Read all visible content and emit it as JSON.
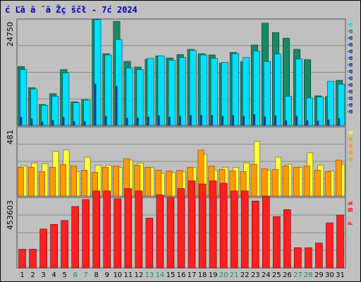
{
  "header": {
    "title": "ć Ľă  ă ¨ă Žç ščł  - 7ć   2024"
  },
  "chart_data": {
    "type": "bar",
    "categories": [
      "1",
      "2",
      "3",
      "4",
      "5",
      "6",
      "7",
      "8",
      "9",
      "10",
      "11",
      "12",
      "13",
      "14",
      "15",
      "16",
      "17",
      "18",
      "19",
      "20",
      "21",
      "22",
      "23",
      "24",
      "25",
      "26",
      "27",
      "28",
      "29",
      "30",
      "31"
    ],
    "weekend_days": [
      "6",
      "7",
      "13",
      "14",
      "20",
      "21",
      "27",
      "28"
    ],
    "panels": [
      {
        "id": "top",
        "ymax_label": "24750",
        "ymax": 24750,
        "legend": [
          "ă",
          "ă",
          "ă",
          "ă",
          "ă",
          "ă",
          "ă",
          "ă",
          "ă",
          "ă",
          "ă",
          "ă",
          "ă",
          "ă"
        ],
        "series": [
          {
            "color": "#00e0ff",
            "values": [
              13000,
              8500,
              4700,
              6800,
              12200,
              5300,
              5900,
              24600,
              16400,
              20000,
              13400,
              13000,
              15600,
              16200,
              15200,
              15800,
              17500,
              16400,
              15600,
              14700,
              16700,
              15800,
              17300,
              14900,
              16600,
              6800,
              15500,
              6400,
              6600,
              10300,
              9600
            ]
          },
          {
            "color": "#1a8a60",
            "values": [
              13700,
              8800,
              4900,
              7400,
              13000,
              5500,
              6000,
              24750,
              16700,
              24200,
              14900,
              13600,
              15400,
              16200,
              15700,
              16500,
              17700,
              16700,
              16400,
              14500,
              17000,
              14800,
              18700,
              23800,
              21600,
              20300,
              17700,
              15300,
              6900,
              6700,
              10500
            ]
          },
          {
            "color": "#1a3aa0",
            "values": [
              2000,
              1600,
              900,
              1200,
              2000,
              1000,
              1000,
              9700,
              2200,
              9200,
              1800,
              1800,
              2000,
              2300,
              2000,
              2200,
              2400,
              2400,
              2400,
              2200,
              2400,
              2200,
              2600,
              2100,
              2300,
              1200,
              2200,
              1200,
              1100,
              1400,
              1700
            ]
          }
        ]
      },
      {
        "id": "mid",
        "ymax_label": "481",
        "ymax": 481,
        "legend": [
          "ă",
          "ă",
          "ă",
          "ă",
          "ă"
        ],
        "series": [
          {
            "color": "#ffff33",
            "values": [
              210,
              230,
              225,
              310,
              320,
              170,
              270,
              215,
              215,
              200,
              250,
              230,
              200,
              160,
              165,
              170,
              200,
              290,
              180,
              200,
              200,
              230,
              380,
              180,
              270,
              220,
              200,
              300,
              215,
              175,
              220
            ]
          },
          {
            "color": "#ff9900",
            "values": [
              200,
              200,
              170,
              200,
              220,
              210,
              180,
              165,
              200,
              210,
              260,
              215,
              200,
              180,
              175,
              180,
              200,
              320,
              210,
              185,
              175,
              170,
              220,
              190,
              185,
              210,
              200,
              210,
              180,
              170,
              250
            ]
          }
        ]
      },
      {
        "id": "bot",
        "ymax_label": "453603",
        "ymax": 453603,
        "legend": [
          "k",
          "B",
          " ",
          "F"
        ],
        "series": [
          {
            "color": "#ff2020",
            "values": [
              120000,
              120000,
              250000,
              280000,
              305000,
              395000,
              440000,
              495000,
              495000,
              445000,
              510000,
              495000,
              320000,
              470000,
              455000,
              510000,
              560000,
              540000,
              560000,
              545000,
              495000,
              495000,
              430000,
              460000,
              330000,
              375000,
              130000,
              130000,
              160000,
              290000,
              340000
            ]
          }
        ]
      }
    ]
  }
}
